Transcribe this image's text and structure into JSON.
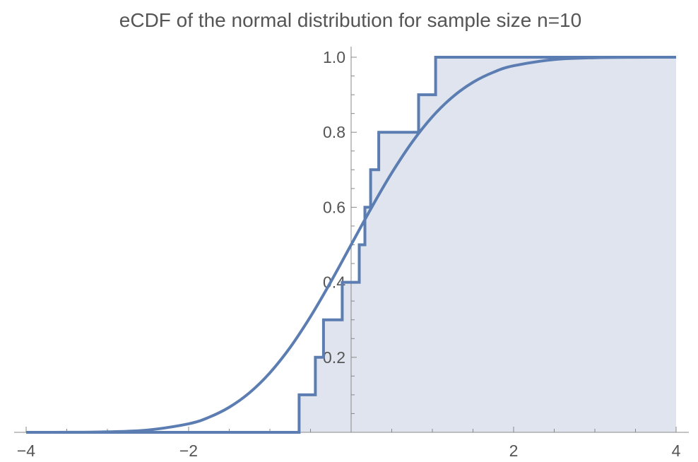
{
  "chart_data": {
    "type": "line",
    "title": "eCDF of the normal distribution for sample size n=10",
    "xlabel": "",
    "ylabel": "",
    "xlim": [
      -4,
      4
    ],
    "ylim": [
      0,
      1
    ],
    "x_ticks": [
      -4,
      -2,
      2,
      4
    ],
    "x_tick_labels": [
      "−4",
      "−2",
      "2",
      "4"
    ],
    "y_ticks": [
      0.2,
      0.4,
      0.6,
      0.8,
      1.0
    ],
    "y_tick_labels": [
      "0.2",
      "0.4",
      "0.6",
      "0.8",
      "1.0"
    ],
    "grid": false,
    "legend": "none",
    "series": [
      {
        "kind": "step",
        "fill": true,
        "sample_points": [
          -0.64,
          -0.44,
          -0.34,
          -0.11,
          0.1,
          0.17,
          0.24,
          0.34,
          0.83,
          1.04
        ],
        "x": [
          -4,
          -0.64,
          -0.44,
          -0.34,
          -0.11,
          0.1,
          0.17,
          0.24,
          0.34,
          0.83,
          1.04,
          4
        ],
        "y": [
          0.0,
          0.1,
          0.2,
          0.3,
          0.4,
          0.5,
          0.6,
          0.7,
          0.8,
          0.9,
          1.0,
          1.0
        ]
      },
      {
        "kind": "curve",
        "x": [
          -4,
          -3.5,
          -3,
          -2.5,
          -2,
          -1.75,
          -1.5,
          -1.25,
          -1,
          -0.75,
          -0.5,
          -0.25,
          0,
          0.25,
          0.5,
          0.75,
          1,
          1.25,
          1.5,
          1.75,
          2,
          2.5,
          3,
          3.5,
          4
        ],
        "y": [
          3e-05,
          0.00023,
          0.00135,
          0.00621,
          0.02275,
          0.04006,
          0.06681,
          0.10565,
          0.15866,
          0.22663,
          0.30854,
          0.40129,
          0.5,
          0.59871,
          0.69146,
          0.77337,
          0.84134,
          0.89435,
          0.93319,
          0.95994,
          0.97725,
          0.99379,
          0.99865,
          0.99977,
          0.99997
        ]
      }
    ],
    "colors": {
      "line": "#5b7db1",
      "fill": "#dfe4ef",
      "axis": "#888888",
      "text": "#555555"
    }
  }
}
